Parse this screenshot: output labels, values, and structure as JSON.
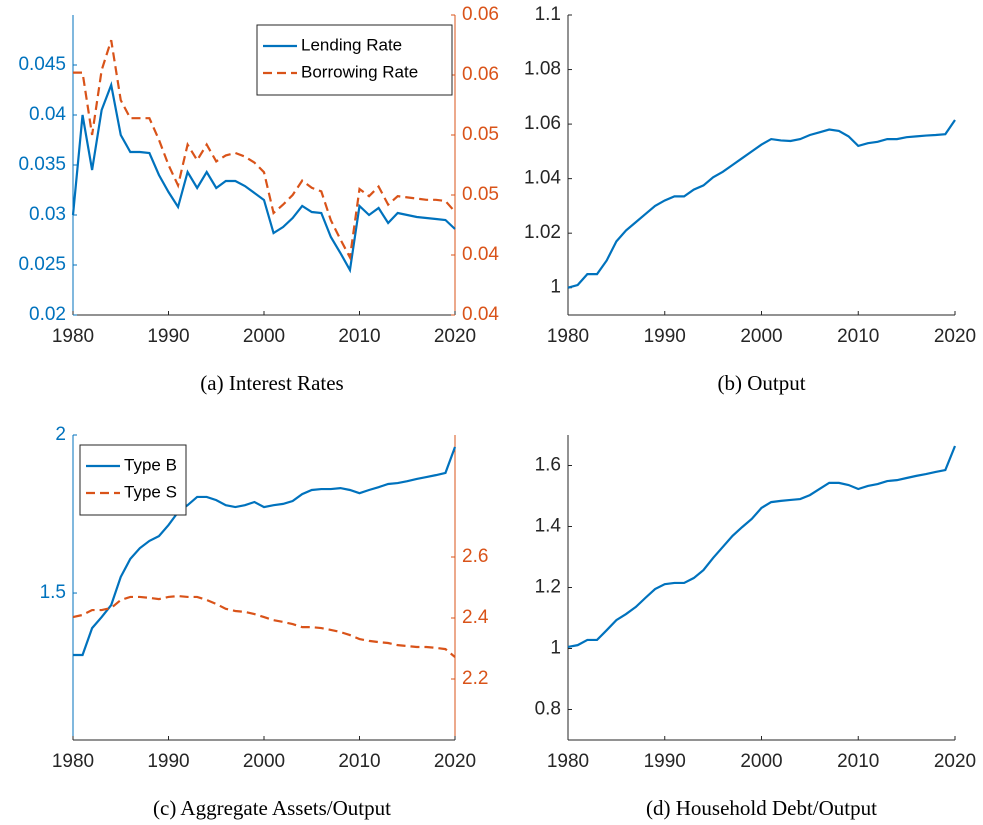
{
  "chart_data": [
    {
      "type": "line",
      "caption": "(a) Interest Rates",
      "x": [
        1980,
        1981,
        1982,
        1983,
        1984,
        1985,
        1986,
        1987,
        1988,
        1989,
        1990,
        1991,
        1992,
        1993,
        1994,
        1995,
        1996,
        1997,
        1998,
        1999,
        2000,
        2001,
        2002,
        2003,
        2004,
        2005,
        2006,
        2007,
        2008,
        2009,
        2010,
        2011,
        2012,
        2013,
        2014,
        2015,
        2016,
        2017,
        2018,
        2019,
        2020
      ],
      "xlim": [
        1980,
        2020
      ],
      "xticks": [
        1980,
        1990,
        2000,
        2010,
        2020
      ],
      "ylim": [
        0.02,
        0.05
      ],
      "yticks": [
        0.02,
        0.025,
        0.03,
        0.035,
        0.04,
        0.045
      ],
      "y2lim": [
        0.04,
        0.065
      ],
      "y2ticks": [
        0.04,
        {
          "value": 0.045,
          "label": "0.04"
        },
        0.05,
        {
          "value": 0.055,
          "label": "0.05"
        },
        0.06,
        {
          "value": 0.065,
          "label": "0.06"
        }
      ],
      "legend": "northeast",
      "series": [
        {
          "name": "Lending Rate",
          "color": "#0072BD",
          "linestyle": "solid",
          "values": [
            0.03,
            0.04,
            0.0345,
            0.0405,
            0.043,
            0.038,
            0.0363,
            0.0363,
            0.0362,
            0.034,
            0.0323,
            0.0308,
            0.0343,
            0.0327,
            0.0343,
            0.0327,
            0.0334,
            0.0334,
            0.0329,
            0.0322,
            0.0315,
            0.0282,
            0.0288,
            0.0297,
            0.0309,
            0.0303,
            0.0302,
            0.0278,
            0.0262,
            0.0245,
            0.0309,
            0.03,
            0.0307,
            0.0292,
            0.0302,
            0.03,
            0.0298,
            0.0297,
            0.0296,
            0.0295,
            0.0286
          ]
        },
        {
          "name": "Borrowing Rate",
          "color": "#D95319",
          "linestyle": "dashed",
          "axis": "y2",
          "values": [
            0.0602,
            0.0602,
            0.055,
            0.0604,
            0.0629,
            0.0579,
            0.0564,
            0.0564,
            0.0564,
            0.0546,
            0.0525,
            0.0508,
            0.0542,
            0.0529,
            0.0542,
            0.0528,
            0.0533,
            0.0535,
            0.0532,
            0.0527,
            0.0519,
            0.0485,
            0.0492,
            0.05,
            0.0512,
            0.0506,
            0.0503,
            0.0479,
            0.0463,
            0.0448,
            0.0505,
            0.0499,
            0.0507,
            0.0492,
            0.0499,
            0.0498,
            0.0497,
            0.0496,
            0.0496,
            0.0495,
            0.0486
          ]
        }
      ]
    },
    {
      "type": "line",
      "caption": "(b) Output",
      "x": [
        1980,
        1981,
        1982,
        1983,
        1984,
        1985,
        1986,
        1987,
        1988,
        1989,
        1990,
        1991,
        1992,
        1993,
        1994,
        1995,
        1996,
        1997,
        1998,
        1999,
        2000,
        2001,
        2002,
        2003,
        2004,
        2005,
        2006,
        2007,
        2008,
        2009,
        2010,
        2011,
        2012,
        2013,
        2014,
        2015,
        2016,
        2017,
        2018,
        2019,
        2020
      ],
      "xlim": [
        1980,
        2020
      ],
      "xticks": [
        1980,
        1990,
        2000,
        2010,
        2020
      ],
      "ylim": [
        0.99,
        1.1
      ],
      "yticks": [
        1,
        1.02,
        1.04,
        1.06,
        1.08,
        1.1
      ],
      "color": "#0072BD",
      "values": [
        1.0,
        1.001,
        1.005,
        1.005,
        1.01,
        1.017,
        1.021,
        1.024,
        1.027,
        1.03,
        1.032,
        1.0335,
        1.0335,
        1.036,
        1.0375,
        1.0405,
        1.0425,
        1.045,
        1.0475,
        1.05,
        1.0525,
        1.0545,
        1.054,
        1.0538,
        1.0545,
        1.056,
        1.057,
        1.058,
        1.0575,
        1.0555,
        1.052,
        1.053,
        1.0535,
        1.0545,
        1.0545,
        1.0552,
        1.0555,
        1.0558,
        1.056,
        1.0563,
        1.0615
      ]
    },
    {
      "type": "line",
      "caption": "(c) Aggregate Assets/Output",
      "x": [
        1980,
        1981,
        1982,
        1983,
        1984,
        1985,
        1986,
        1987,
        1988,
        1989,
        1990,
        1991,
        1992,
        1993,
        1994,
        1995,
        1996,
        1997,
        1998,
        1999,
        2000,
        2001,
        2002,
        2003,
        2004,
        2005,
        2006,
        2007,
        2008,
        2009,
        2010,
        2011,
        2012,
        2013,
        2014,
        2015,
        2016,
        2017,
        2018,
        2019,
        2020
      ],
      "xlim": [
        1980,
        2020
      ],
      "xticks": [
        1980,
        1990,
        2000,
        2010,
        2020
      ],
      "ylim": [
        1.035,
        2
      ],
      "yticks": [
        1.5,
        2
      ],
      "y2lim": [
        2.0,
        3.0
      ],
      "y2ticks": [
        2.2,
        2.4,
        2.6
      ],
      "legend": "northwest",
      "series": [
        {
          "name": "Type B",
          "color": "#0072BD",
          "linestyle": "solid",
          "values": [
            1.304,
            1.304,
            1.389,
            1.424,
            1.462,
            1.551,
            1.608,
            1.642,
            1.665,
            1.68,
            1.715,
            1.756,
            1.778,
            1.804,
            1.804,
            1.794,
            1.778,
            1.772,
            1.778,
            1.788,
            1.772,
            1.778,
            1.782,
            1.791,
            1.813,
            1.826,
            1.829,
            1.829,
            1.832,
            1.826,
            1.816,
            1.826,
            1.835,
            1.845,
            1.848,
            1.854,
            1.861,
            1.867,
            1.873,
            1.88,
            1.962
          ]
        },
        {
          "name": "Type S",
          "color": "#D95319",
          "linestyle": "dashed",
          "axis": "y2",
          "values": [
            2.403,
            2.41,
            2.426,
            2.426,
            2.433,
            2.459,
            2.469,
            2.469,
            2.466,
            2.462,
            2.469,
            2.472,
            2.469,
            2.469,
            2.459,
            2.446,
            2.43,
            2.423,
            2.42,
            2.413,
            2.403,
            2.393,
            2.387,
            2.38,
            2.37,
            2.37,
            2.367,
            2.361,
            2.354,
            2.344,
            2.331,
            2.325,
            2.321,
            2.318,
            2.311,
            2.308,
            2.305,
            2.305,
            2.302,
            2.298,
            2.272
          ]
        }
      ]
    },
    {
      "type": "line",
      "caption": "(d) Household Debt/Output",
      "x": [
        1980,
        1981,
        1982,
        1983,
        1984,
        1985,
        1986,
        1987,
        1988,
        1989,
        1990,
        1991,
        1992,
        1993,
        1994,
        1995,
        1996,
        1997,
        1998,
        1999,
        2000,
        2001,
        2002,
        2003,
        2004,
        2005,
        2006,
        2007,
        2008,
        2009,
        2010,
        2011,
        2012,
        2013,
        2014,
        2015,
        2016,
        2017,
        2018,
        2019,
        2020
      ],
      "xlim": [
        1980,
        2020
      ],
      "xticks": [
        1980,
        1990,
        2000,
        2010,
        2020
      ],
      "ylim": [
        0.7,
        1.7
      ],
      "yticks": [
        0.8,
        1,
        1.2,
        1.4,
        1.6
      ],
      "color": "#0072BD",
      "values": [
        1.005,
        1.011,
        1.028,
        1.028,
        1.06,
        1.093,
        1.113,
        1.136,
        1.166,
        1.195,
        1.211,
        1.215,
        1.215,
        1.231,
        1.257,
        1.297,
        1.333,
        1.369,
        1.398,
        1.425,
        1.461,
        1.48,
        1.484,
        1.487,
        1.49,
        1.503,
        1.523,
        1.543,
        1.543,
        1.536,
        1.523,
        1.533,
        1.539,
        1.549,
        1.552,
        1.559,
        1.566,
        1.572,
        1.579,
        1.585,
        1.664
      ]
    }
  ]
}
